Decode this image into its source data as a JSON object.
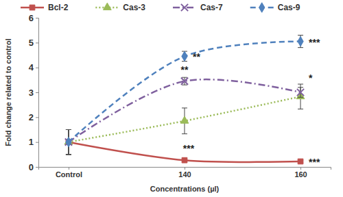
{
  "chart_data": {
    "type": "line",
    "x_label": "Concentrations (µl)",
    "y_label": "Fold change related to control",
    "categories": [
      "Control",
      "140",
      "160"
    ],
    "ylim": [
      0,
      6
    ],
    "yticks": [
      0,
      1,
      2,
      3,
      4,
      5,
      6
    ],
    "legend": "top",
    "series": [
      {
        "name": "Bcl-2",
        "color": "#c0504d",
        "marker": "square",
        "line_style": "solid",
        "values": [
          1,
          0.27,
          0.22
        ],
        "errors": [
          0.5,
          0.05,
          0.04
        ],
        "significance": [
          null,
          "***",
          "***"
        ]
      },
      {
        "name": "Cas-3",
        "color": "#9bbb59",
        "marker": "triangle",
        "line_style": "dotted",
        "values": [
          1,
          1.85,
          2.83
        ],
        "errors": [
          0.5,
          0.52,
          0.5
        ],
        "significance": [
          null,
          null,
          null
        ]
      },
      {
        "name": "Cas-7",
        "color": "#7f609e",
        "marker": "x",
        "line_style": "dashdot",
        "values": [
          1,
          3.45,
          3.0
        ],
        "errors": [
          0.5,
          0.15,
          0.2
        ],
        "significance": [
          null,
          "**",
          "*"
        ]
      },
      {
        "name": "Cas-9",
        "color": "#4f81bd",
        "marker": "diamond",
        "line_style": "dashed",
        "values": [
          1,
          4.45,
          5.05
        ],
        "errors": [
          0.5,
          0.2,
          0.25
        ],
        "significance": [
          null,
          "**",
          "***"
        ]
      }
    ]
  }
}
